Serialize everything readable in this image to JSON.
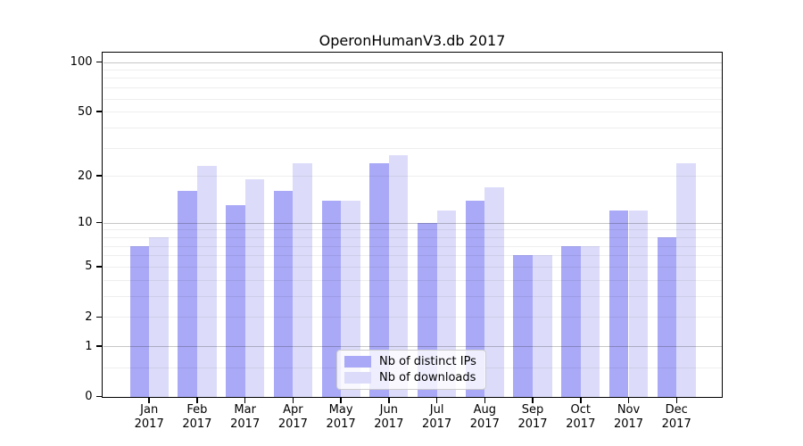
{
  "colors": {
    "background": "#ffffff",
    "axis": "#000000",
    "series_ips": "#a9a9f7",
    "series_downloads": "#dcdcfa"
  },
  "chart_data": {
    "type": "bar",
    "title": "OperonHumanV3.db 2017",
    "xlabel": "",
    "ylabel": "",
    "categories": [
      "Jan",
      "Feb",
      "Mar",
      "Apr",
      "May",
      "Jun",
      "Jul",
      "Aug",
      "Sep",
      "Oct",
      "Nov",
      "Dec"
    ],
    "year_label": "2017",
    "series": [
      {
        "name": "Nb of distinct IPs",
        "color": "#a9a9f7",
        "values": [
          7,
          16,
          13,
          16,
          14,
          24,
          10,
          14,
          6,
          7,
          12,
          8
        ]
      },
      {
        "name": "Nb of downloads",
        "color": "#dcdcfa",
        "values": [
          8,
          23,
          19,
          24,
          14,
          27,
          12,
          17,
          6,
          7,
          12,
          24
        ]
      }
    ],
    "yscale": "log10(1+v)",
    "ylim": [
      0,
      115
    ],
    "y_tick_values": [
      100,
      50,
      20,
      10,
      5,
      2,
      1,
      0
    ],
    "y_major_gridlines": [
      1,
      10,
      100
    ],
    "y_minor_gridlines": [
      0.5,
      2,
      3,
      4,
      5,
      6,
      7,
      8,
      9,
      20,
      30,
      40,
      50,
      60,
      70,
      80,
      90
    ],
    "grid": true,
    "legend_position": "bottom-center"
  }
}
